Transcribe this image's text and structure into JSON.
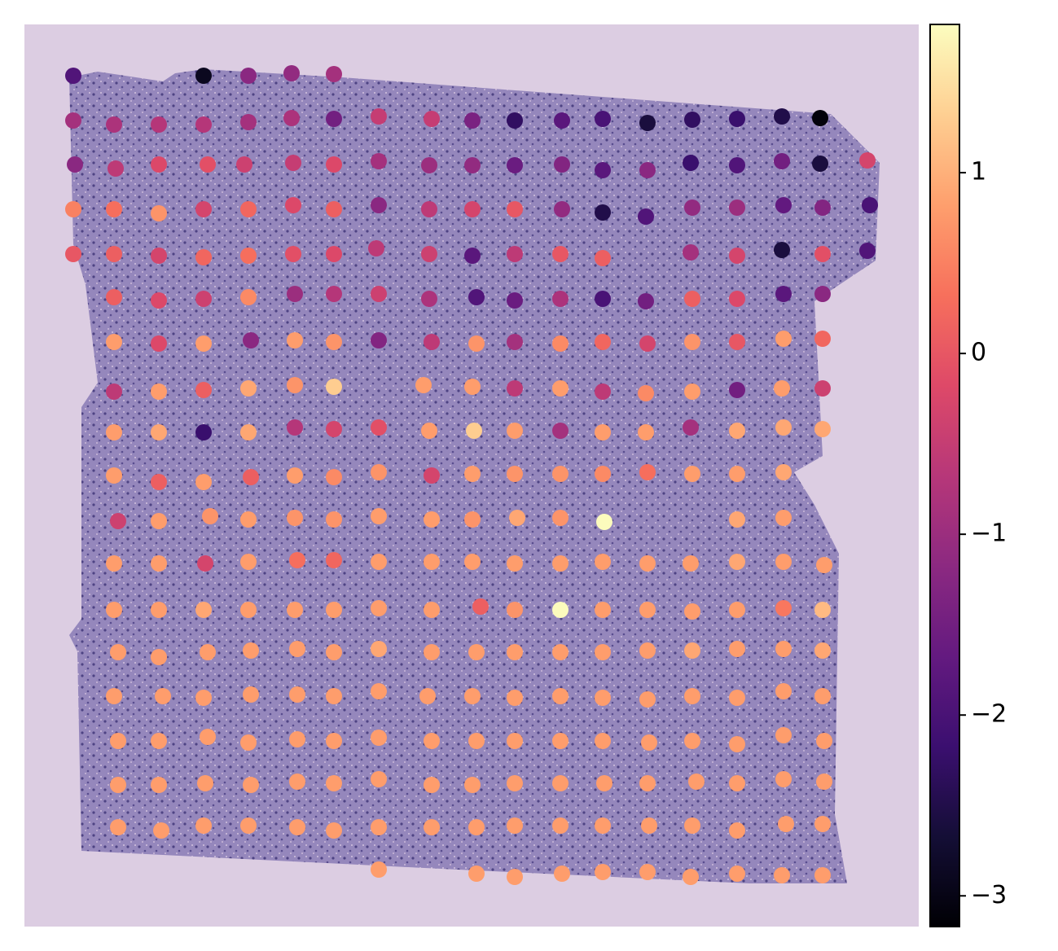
{
  "chart_data": {
    "type": "scatter",
    "xlim": [
      30,
      1128
    ],
    "ylim": [
      1138,
      30
    ],
    "clim": [
      -3.17,
      1.82
    ],
    "colormap": "magma",
    "cticks": [
      {
        "value": -3,
        "label": "−3"
      },
      {
        "value": -2,
        "label": "−2"
      },
      {
        "value": -1,
        "label": "−1"
      },
      0,
      1
    ],
    "x": [
      90,
      250,
      305,
      358,
      410,
      90,
      140,
      195,
      250,
      305,
      358,
      410,
      465,
      530,
      580,
      632,
      690,
      740,
      795,
      850,
      905,
      960,
      1007,
      92,
      142,
      195,
      255,
      300,
      360,
      410,
      465,
      527,
      580,
      632,
      690,
      740,
      795,
      848,
      905,
      960,
      1007,
      1065,
      90,
      140,
      195,
      250,
      305,
      360,
      410,
      465,
      527,
      580,
      632,
      690,
      740,
      793,
      850,
      905,
      962,
      1010,
      1068,
      90,
      140,
      195,
      250,
      305,
      360,
      410,
      462,
      527,
      580,
      632,
      688,
      740,
      848,
      905,
      960,
      1010,
      1065,
      140,
      195,
      250,
      305,
      362,
      410,
      465,
      527,
      585,
      632,
      688,
      740,
      793,
      850,
      905,
      962,
      1010,
      140,
      195,
      250,
      308,
      362,
      410,
      465,
      530,
      585,
      632,
      688,
      740,
      795,
      850,
      905,
      962,
      1010,
      140,
      195,
      250,
      305,
      362,
      410,
      520,
      580,
      632,
      688,
      740,
      793,
      850,
      905,
      960,
      1010,
      140,
      195,
      250,
      305,
      362,
      410,
      465,
      527,
      582,
      632,
      688,
      740,
      793,
      848,
      905,
      962,
      1010,
      140,
      195,
      250,
      308,
      362,
      410,
      465,
      530,
      580,
      632,
      688,
      740,
      795,
      850,
      905,
      962,
      145,
      195,
      258,
      305,
      362,
      410,
      465,
      530,
      580,
      635,
      688,
      742,
      905,
      962,
      140,
      195,
      252,
      305,
      365,
      410,
      465,
      530,
      580,
      632,
      688,
      740,
      795,
      848,
      905,
      962,
      1012,
      140,
      195,
      250,
      305,
      362,
      410,
      465,
      530,
      590,
      632,
      688,
      740,
      795,
      850,
      905,
      962,
      1010,
      145,
      195,
      255,
      308,
      365,
      410,
      465,
      530,
      585,
      632,
      688,
      740,
      795,
      850,
      905,
      962,
      1010,
      140,
      200,
      250,
      308,
      365,
      410,
      465,
      525,
      580,
      632,
      688,
      740,
      795,
      850,
      905,
      962,
      1010,
      145,
      195,
      255,
      305,
      365,
      410,
      465,
      530,
      585,
      632,
      688,
      740,
      797,
      850,
      905,
      962,
      1012,
      145,
      195,
      252,
      308,
      365,
      410,
      465,
      530,
      580,
      632,
      688,
      742,
      795,
      855,
      905,
      962,
      1012,
      145,
      198,
      250,
      305,
      365,
      410,
      465,
      530,
      585,
      632,
      688,
      740,
      797,
      850,
      905,
      965,
      1010,
      465,
      585,
      632,
      690,
      740,
      795,
      848,
      905,
      960,
      1010
    ],
    "y": [
      93,
      93,
      93,
      90,
      91,
      148,
      153,
      153,
      153,
      150,
      145,
      146,
      143,
      146,
      148,
      148,
      148,
      146,
      151,
      147,
      146,
      143,
      145,
      202,
      207,
      202,
      202,
      202,
      200,
      202,
      198,
      203,
      203,
      203,
      202,
      209,
      209,
      200,
      203,
      198,
      201,
      197,
      257,
      257,
      262,
      257,
      257,
      252,
      257,
      252,
      257,
      257,
      257,
      257,
      261,
      266,
      255,
      255,
      252,
      255,
      252,
      312,
      312,
      314,
      316,
      314,
      312,
      312,
      305,
      312,
      314,
      312,
      312,
      317,
      310,
      314,
      307,
      312,
      308,
      365,
      369,
      367,
      365,
      361,
      361,
      361,
      367,
      365,
      369,
      367,
      367,
      370,
      367,
      367,
      361,
      361,
      420,
      422,
      422,
      418,
      418,
      420,
      418,
      420,
      422,
      420,
      422,
      420,
      422,
      420,
      420,
      416,
      416,
      481,
      481,
      479,
      477,
      473,
      475,
      473,
      475,
      477,
      477,
      481,
      483,
      481,
      479,
      477,
      477,
      531,
      531,
      531,
      531,
      525,
      527,
      525,
      529,
      529,
      529,
      529,
      531,
      531,
      525,
      529,
      525,
      527,
      584,
      592,
      592,
      586,
      584,
      586,
      580,
      584,
      582,
      582,
      582,
      582,
      580,
      582,
      582,
      580,
      640,
      640,
      634,
      638,
      636,
      638,
      634,
      638,
      638,
      636,
      636,
      641,
      638,
      636,
      692,
      692,
      692,
      690,
      688,
      688,
      690,
      690,
      690,
      692,
      692,
      690,
      692,
      692,
      690,
      690,
      694,
      749,
      749,
      749,
      749,
      749,
      749,
      747,
      749,
      745,
      749,
      749,
      749,
      749,
      751,
      749,
      747,
      749,
      801,
      807,
      801,
      799,
      797,
      801,
      797,
      801,
      801,
      801,
      801,
      801,
      799,
      799,
      797,
      797,
      799,
      855,
      855,
      857,
      853,
      853,
      855,
      849,
      855,
      855,
      857,
      855,
      857,
      859,
      855,
      857,
      849,
      855,
      910,
      910,
      905,
      912,
      908,
      910,
      906,
      910,
      910,
      910,
      910,
      910,
      912,
      910,
      914,
      903,
      910,
      964,
      964,
      962,
      964,
      960,
      962,
      957,
      964,
      964,
      962,
      962,
      962,
      962,
      960,
      962,
      957,
      960,
      1016,
      1020,
      1014,
      1014,
      1016,
      1020,
      1016,
      1016,
      1016,
      1014,
      1014,
      1014,
      1014,
      1014,
      1020,
      1012,
      1012,
      1068,
      1073,
      1077,
      1073,
      1071,
      1071,
      1077,
      1073,
      1075,
      1075
    ],
    "values": [
      -1.9,
      -2.9,
      -1.2,
      -1.1,
      -0.9,
      -0.9,
      -0.8,
      -0.7,
      -0.7,
      -0.9,
      -0.8,
      -1.5,
      -0.5,
      -0.5,
      -1.4,
      -2.3,
      -1.8,
      -2.0,
      -2.6,
      -2.3,
      -2.2,
      -2.5,
      -3.1,
      -1.2,
      -0.6,
      -0.2,
      -0.1,
      -0.4,
      -0.5,
      -0.2,
      -0.9,
      -1.0,
      -1.1,
      -1.6,
      -1.3,
      -1.8,
      -1.2,
      -2.2,
      -1.9,
      -1.5,
      -2.6,
      -0.3,
      0.5,
      0.3,
      0.7,
      -0.3,
      0.2,
      -0.2,
      0.1,
      -1.2,
      -0.6,
      -0.3,
      0.0,
      -1.1,
      -2.5,
      -1.9,
      -1.1,
      -1.0,
      -1.7,
      -1.3,
      -2.0,
      0.0,
      0.1,
      -0.3,
      0.2,
      0.3,
      -0.1,
      -0.2,
      -0.6,
      -0.4,
      -1.8,
      -0.6,
      0.0,
      0.1,
      -0.9,
      -0.3,
      -2.6,
      -0.1,
      -1.9,
      0.1,
      -0.2,
      -0.4,
      0.6,
      -1.0,
      -0.7,
      -0.4,
      -0.8,
      -1.9,
      -1.6,
      -0.8,
      -2.0,
      -1.5,
      0.1,
      -0.2,
      -1.8,
      -1.2,
      0.8,
      -0.2,
      0.8,
      -1.2,
      0.8,
      0.7,
      -1.3,
      -0.6,
      0.7,
      -0.9,
      0.6,
      0.2,
      -0.3,
      0.7,
      0.0,
      0.8,
      0.2,
      -0.6,
      0.8,
      0.1,
      0.9,
      0.7,
      1.3,
      0.8,
      0.8,
      -0.6,
      0.8,
      -0.6,
      0.6,
      0.8,
      -1.5,
      0.8,
      -0.4,
      0.8,
      0.9,
      -2.2,
      0.9,
      -0.7,
      -0.3,
      -0.1,
      0.8,
      1.3,
      0.8,
      -0.9,
      0.8,
      0.8,
      -0.9,
      0.9,
      0.9,
      0.9,
      0.8,
      0.1,
      0.8,
      0.1,
      0.8,
      0.6,
      0.7,
      -0.3,
      0.8,
      0.7,
      0.7,
      0.6,
      0.3,
      0.8,
      0.8,
      0.9,
      -0.4,
      0.8,
      0.7,
      0.8,
      0.7,
      0.7,
      0.8,
      0.8,
      0.7,
      0.9,
      0.7,
      1.8,
      0.9,
      0.8,
      0.8,
      0.8,
      -0.3,
      0.8,
      0.3,
      0.2,
      0.8,
      0.8,
      0.8,
      0.8,
      0.8,
      0.8,
      0.8,
      0.8,
      0.9,
      0.8,
      0.8,
      0.8,
      0.8,
      0.9,
      0.8,
      0.8,
      0.8,
      0.8,
      0.8,
      0.1,
      0.7,
      1.8,
      0.8,
      0.8,
      0.8,
      0.8,
      0.4,
      1.1,
      0.8,
      0.8,
      0.8,
      0.8,
      0.8,
      0.8,
      0.9,
      0.8,
      0.8,
      0.8,
      0.8,
      0.8,
      0.8,
      0.9,
      0.8,
      0.8,
      0.9,
      0.8,
      0.8,
      0.8,
      0.8,
      0.8,
      0.8,
      0.8,
      0.8,
      0.8,
      0.8,
      0.8,
      0.8,
      0.8,
      0.8,
      0.8,
      0.8,
      0.8,
      0.8,
      0.8,
      0.8,
      0.8,
      0.8,
      0.8,
      0.8,
      0.8,
      0.8,
      0.8,
      0.8,
      0.8,
      0.8,
      0.8,
      0.8,
      0.8,
      0.8,
      0.8,
      0.8,
      0.8,
      0.8,
      0.8,
      0.8,
      0.8,
      0.8,
      0.8,
      0.8,
      0.8,
      0.8,
      0.8,
      0.8,
      0.8,
      0.8,
      0.8,
      0.8,
      0.8,
      0.8,
      0.8,
      0.8,
      0.8,
      0.8,
      0.8,
      0.8,
      0.8,
      0.8,
      0.8,
      0.8,
      0.8,
      0.8,
      0.8,
      0.8,
      0.8,
      0.8,
      0.8,
      0.8,
      0.8,
      0.8,
      0.8,
      0.8,
      0.8,
      0.8
    ]
  }
}
